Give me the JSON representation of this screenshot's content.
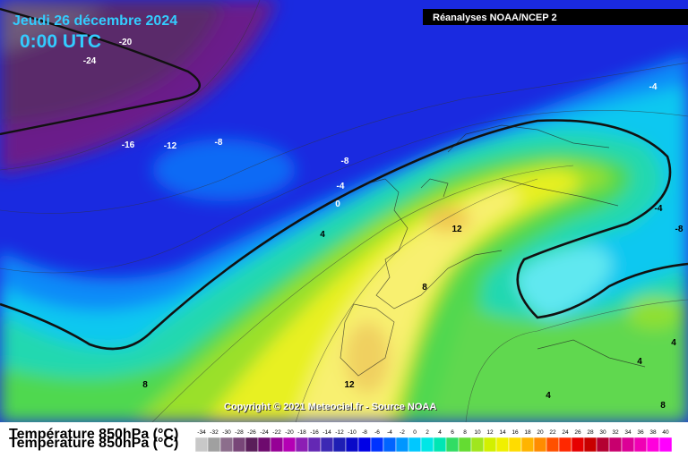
{
  "header": {
    "date": "Jeudi 26 décembre 2024",
    "time": "0:00 UTC",
    "source": "Réanalyses NOAA/NCEP 2"
  },
  "copyright": "Copyright © 2021 Meteociel.fr - Source NOAA",
  "legend": {
    "title": "Température 850hPa (°C)",
    "labels": [
      -34,
      -32,
      -30,
      -28,
      -26,
      -24,
      -22,
      -20,
      -18,
      -16,
      -14,
      -12,
      -10,
      -8,
      -6,
      -4,
      -2,
      0,
      2,
      4,
      6,
      8,
      10,
      12,
      14,
      16,
      18,
      20,
      22,
      24,
      26,
      28,
      30,
      32,
      34,
      36,
      38,
      40
    ],
    "colors": [
      "#c8c8c8",
      "#a0a0a0",
      "#8c6e8c",
      "#784678",
      "#5a1e5a",
      "#6e0a6e",
      "#960096",
      "#b400b4",
      "#8c1eb4",
      "#6428b4",
      "#3c28b4",
      "#1e1eb4",
      "#0a0ac8",
      "#0000e6",
      "#0032ff",
      "#0064ff",
      "#0096ff",
      "#00c8ff",
      "#00e6e6",
      "#00e6b4",
      "#32dc64",
      "#64dc32",
      "#a0e61e",
      "#d2f000",
      "#f0f000",
      "#ffdc00",
      "#ffb400",
      "#ff8c00",
      "#ff5000",
      "#ff2800",
      "#e60000",
      "#c80000",
      "#b40032",
      "#c8006e",
      "#dc0096",
      "#f000b4",
      "#ff00dc",
      "#ff00ff"
    ]
  },
  "contour_labels": [
    "-20",
    "-24",
    "-16",
    "-12",
    "-8",
    "-8",
    "-4",
    "0",
    "4",
    "12",
    "8",
    "8",
    "12",
    "-4",
    "-4",
    "-8",
    "4",
    "4",
    "4",
    "8"
  ]
}
